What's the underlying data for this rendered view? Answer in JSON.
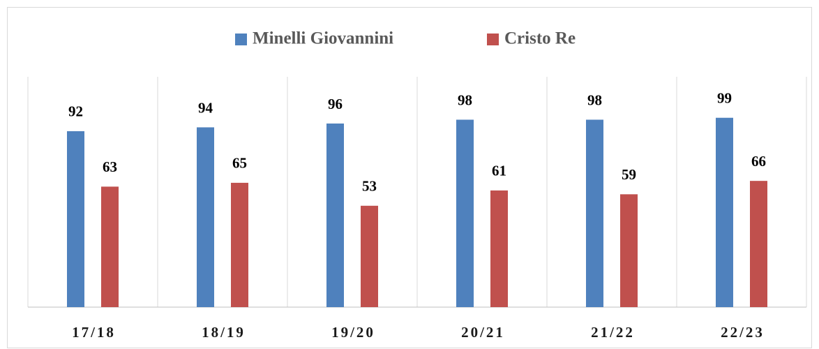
{
  "chart_data": {
    "type": "bar",
    "categories": [
      "17/18",
      "18/19",
      "19/20",
      "20/21",
      "21/22",
      "22/23"
    ],
    "series": [
      {
        "name": "Minelli Giovannini",
        "color": "#4f81bd",
        "values": [
          92,
          94,
          96,
          98,
          98,
          99
        ]
      },
      {
        "name": "Cristo Re",
        "color": "#c0504d",
        "values": [
          63,
          65,
          53,
          61,
          59,
          66
        ]
      }
    ],
    "ylim": [
      0,
      100
    ],
    "legend": "top"
  }
}
